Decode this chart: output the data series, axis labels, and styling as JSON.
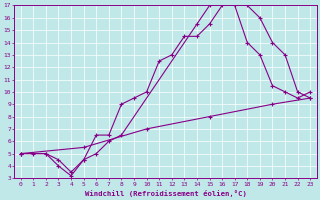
{
  "xlabel": "Windchill (Refroidissement éolien,°C)",
  "xlim": [
    -0.5,
    23.5
  ],
  "ylim": [
    3,
    17
  ],
  "xticks": [
    0,
    1,
    2,
    3,
    4,
    5,
    6,
    7,
    8,
    9,
    10,
    11,
    12,
    13,
    14,
    15,
    16,
    17,
    18,
    19,
    20,
    21,
    22,
    23
  ],
  "yticks": [
    3,
    4,
    5,
    6,
    7,
    8,
    9,
    10,
    11,
    12,
    13,
    14,
    15,
    16,
    17
  ],
  "background_color": "#c0e8e8",
  "plot_background": "#c0e8e8",
  "line_color": "#880088",
  "grid_color": "#ffffff",
  "line1_x": [
    0,
    1,
    2,
    3,
    4,
    5,
    6,
    7,
    8,
    9,
    10,
    11,
    12,
    13,
    14,
    15,
    16,
    17,
    18,
    19,
    20,
    21,
    22,
    23
  ],
  "line1_y": [
    5,
    5,
    5,
    4.5,
    3.5,
    4.5,
    6.5,
    6.5,
    9.0,
    9.5,
    10.0,
    12.5,
    13.0,
    14.5,
    14.5,
    15.5,
    17.0,
    17.2,
    17.0,
    16.0,
    14.0,
    13.0,
    10.0,
    9.5
  ],
  "line2_x": [
    0,
    2,
    3,
    4,
    5,
    6,
    7,
    8,
    14,
    15,
    16,
    17,
    18,
    19,
    20,
    21,
    22,
    23
  ],
  "line2_y": [
    5,
    5.0,
    4.0,
    3.2,
    4.5,
    5.0,
    6.0,
    6.5,
    15.5,
    17.0,
    17.2,
    17.0,
    14.0,
    13.0,
    10.5,
    10.0,
    9.5,
    10.0
  ],
  "line3_x": [
    0,
    5,
    10,
    15,
    20,
    23
  ],
  "line3_y": [
    5,
    5.5,
    7.0,
    8.0,
    9.0,
    9.5
  ]
}
